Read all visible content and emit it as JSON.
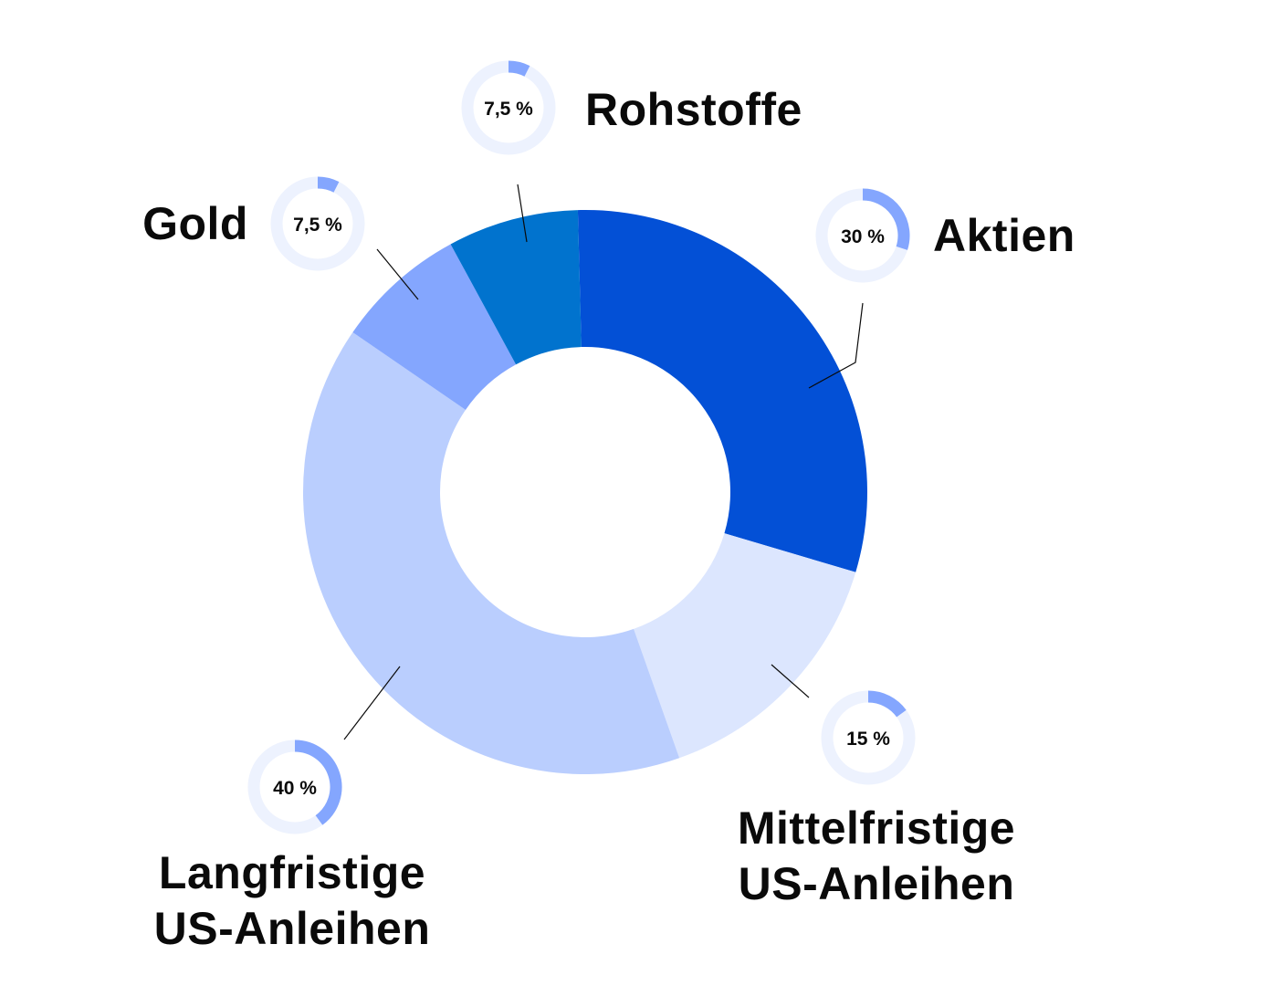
{
  "chart_data": {
    "type": "pie",
    "variant": "donut",
    "slices": [
      {
        "label": "Aktien",
        "value": 30,
        "display": "30 %",
        "color": "#0350d6"
      },
      {
        "label": "Mittelfristige US-Anleihen",
        "value": 15,
        "display": "15 %",
        "color": "#dce6fe"
      },
      {
        "label": "Langfristige US-Anleihen",
        "value": 40,
        "display": "40 %",
        "color": "#bacefe"
      },
      {
        "label": "Gold",
        "value": 7.5,
        "display": "7,5 %",
        "color": "#84a6fe"
      },
      {
        "label": "Rohstoffe",
        "value": 7.5,
        "display": "7,5 %",
        "color": "#0173ce"
      }
    ],
    "badge_track_color": "#edf2fe",
    "badge_fill_color": "#84a6fe",
    "leader_line_color": "#0a0a0a"
  }
}
